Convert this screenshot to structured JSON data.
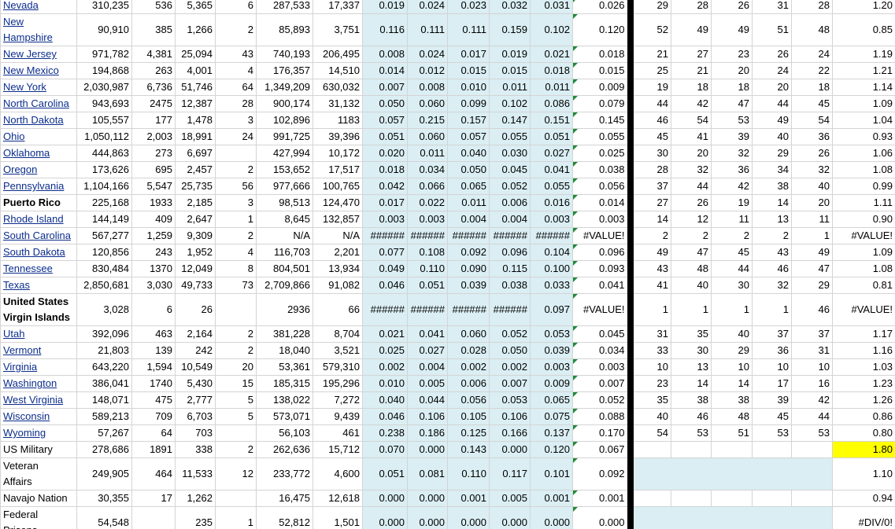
{
  "table": {
    "rows": [
      [
        "Nevada",
        "310,235",
        "536",
        "5,365",
        "6",
        "287,533",
        "17,337",
        "0.019",
        "0.024",
        "0.023",
        "0.032",
        "0.031",
        "0.026",
        "29",
        "28",
        "26",
        "31",
        "28",
        "1.20"
      ],
      [
        "New Hampshire",
        "90,910",
        "385",
        "1,266",
        "2",
        "85,893",
        "3,751",
        "0.116",
        "0.111",
        "0.111",
        "0.159",
        "0.102",
        "0.120",
        "52",
        "49",
        "49",
        "51",
        "48",
        "0.85"
      ],
      [
        "New Jersey",
        "971,782",
        "4,381",
        "25,094",
        "43",
        "740,193",
        "206,495",
        "0.008",
        "0.024",
        "0.017",
        "0.019",
        "0.021",
        "0.018",
        "21",
        "27",
        "23",
        "26",
        "24",
        "1.19"
      ],
      [
        "New Mexico",
        "194,868",
        "263",
        "4,001",
        "4",
        "176,357",
        "14,510",
        "0.014",
        "0.012",
        "0.015",
        "0.015",
        "0.018",
        "0.015",
        "25",
        "21",
        "20",
        "24",
        "22",
        "1.21"
      ],
      [
        "New York",
        "2,030,987",
        "6,736",
        "51,746",
        "64",
        "1,349,209",
        "630,032",
        "0.007",
        "0.008",
        "0.010",
        "0.011",
        "0.011",
        "0.009",
        "19",
        "18",
        "18",
        "20",
        "18",
        "1.14"
      ],
      [
        "North Carolina",
        "943,693",
        "2475",
        "12,387",
        "28",
        "900,174",
        "31,132",
        "0.050",
        "0.060",
        "0.099",
        "0.102",
        "0.086",
        "0.079",
        "44",
        "42",
        "47",
        "44",
        "45",
        "1.09"
      ],
      [
        "North Dakota",
        "105,557",
        "177",
        "1,478",
        "3",
        "102,896",
        "1183",
        "0.057",
        "0.215",
        "0.157",
        "0.147",
        "0.151",
        "0.145",
        "46",
        "54",
        "53",
        "49",
        "54",
        "1.04"
      ],
      [
        "Ohio",
        "1,050,112",
        "2,003",
        "18,991",
        "24",
        "991,725",
        "39,396",
        "0.051",
        "0.060",
        "0.057",
        "0.055",
        "0.051",
        "0.055",
        "45",
        "41",
        "39",
        "40",
        "36",
        "0.93"
      ],
      [
        "Oklahoma",
        "444,863",
        "273",
        "6,697",
        null,
        "427,994",
        "10,172",
        "0.020",
        "0.011",
        "0.040",
        "0.030",
        "0.027",
        "0.025",
        "30",
        "20",
        "32",
        "29",
        "26",
        "1.06"
      ],
      [
        "Oregon",
        "173,626",
        "695",
        "2,457",
        "2",
        "153,652",
        "17,517",
        "0.018",
        "0.034",
        "0.050",
        "0.045",
        "0.041",
        "0.038",
        "28",
        "32",
        "36",
        "34",
        "32",
        "1.08"
      ],
      [
        "Pennsylvania",
        "1,104,166",
        "5,547",
        "25,735",
        "56",
        "977,666",
        "100,765",
        "0.042",
        "0.066",
        "0.065",
        "0.052",
        "0.055",
        "0.056",
        "37",
        "44",
        "42",
        "38",
        "40",
        "0.99"
      ],
      [
        "Puerto Rico",
        "225,168",
        "1933",
        "2,185",
        "3",
        "98,513",
        "124,470",
        "0.017",
        "0.022",
        "0.011",
        "0.006",
        "0.016",
        "0.014",
        "27",
        "26",
        "19",
        "14",
        "20",
        "1.11"
      ],
      [
        "Rhode Island",
        "144,149",
        "409",
        "2,647",
        "1",
        "8,645",
        "132,857",
        "0.003",
        "0.003",
        "0.004",
        "0.004",
        "0.003",
        "0.003",
        "14",
        "12",
        "11",
        "13",
        "11",
        "0.90"
      ],
      [
        "South Carolina",
        "567,277",
        "1,259",
        "9,309",
        "2",
        "N/A",
        "N/A",
        "######",
        "######",
        "######",
        "######",
        "######",
        "#VALUE!",
        "2",
        "2",
        "2",
        "2",
        "1",
        "#VALUE!"
      ],
      [
        "South Dakota",
        "120,856",
        "243",
        "1,952",
        "4",
        "116,703",
        "2,201",
        "0.077",
        "0.108",
        "0.092",
        "0.096",
        "0.104",
        "0.096",
        "49",
        "47",
        "45",
        "43",
        "49",
        "1.09"
      ],
      [
        "Tennessee",
        "830,484",
        "1370",
        "12,049",
        "8",
        "804,501",
        "13,934",
        "0.049",
        "0.110",
        "0.090",
        "0.115",
        "0.100",
        "0.093",
        "43",
        "48",
        "44",
        "46",
        "47",
        "1.08"
      ],
      [
        "Texas",
        "2,850,681",
        "3,030",
        "49,733",
        "73",
        "2,709,866",
        "91,082",
        "0.046",
        "0.051",
        "0.039",
        "0.038",
        "0.033",
        "0.041",
        "41",
        "40",
        "30",
        "32",
        "29",
        "0.81"
      ],
      [
        "United States Virgin Islands",
        "3,028",
        "6",
        "26",
        null,
        "2936",
        "66",
        "######",
        "######",
        "######",
        "######",
        "0.097",
        "#VALUE!",
        "1",
        "1",
        "1",
        "1",
        "46",
        "#VALUE!"
      ],
      [
        "Utah",
        "392,096",
        "463",
        "2,164",
        "2",
        "381,228",
        "8,704",
        "0.021",
        "0.041",
        "0.060",
        "0.052",
        "0.053",
        "0.045",
        "31",
        "35",
        "40",
        "37",
        "37",
        "1.17"
      ],
      [
        "Vermont",
        "21,803",
        "139",
        "242",
        "2",
        "18,040",
        "3,521",
        "0.025",
        "0.027",
        "0.028",
        "0.050",
        "0.039",
        "0.034",
        "33",
        "30",
        "29",
        "36",
        "31",
        "1.16"
      ],
      [
        "Virginia",
        "643,220",
        "1,594",
        "10,549",
        "20",
        "53,361",
        "579,310",
        "0.002",
        "0.004",
        "0.002",
        "0.002",
        "0.003",
        "0.003",
        "10",
        "13",
        "10",
        "10",
        "10",
        "1.03"
      ],
      [
        "Washington",
        "386,041",
        "1740",
        "5,430",
        "15",
        "185,315",
        "195,296",
        "0.010",
        "0.005",
        "0.006",
        "0.007",
        "0.009",
        "0.007",
        "23",
        "14",
        "14",
        "17",
        "16",
        "1.23"
      ],
      [
        "West Virginia",
        "148,071",
        "475",
        "2,777",
        "5",
        "138,022",
        "7,272",
        "0.040",
        "0.044",
        "0.056",
        "0.053",
        "0.065",
        "0.052",
        "35",
        "38",
        "38",
        "39",
        "42",
        "1.26"
      ],
      [
        "Wisconsin",
        "589,213",
        "709",
        "6,703",
        "5",
        "573,071",
        "9,439",
        "0.046",
        "0.106",
        "0.105",
        "0.106",
        "0.075",
        "0.088",
        "40",
        "46",
        "48",
        "45",
        "44",
        "0.86"
      ],
      [
        "Wyoming",
        "57,267",
        "64",
        "703",
        null,
        "56,103",
        "461",
        "0.238",
        "0.186",
        "0.125",
        "0.166",
        "0.137",
        "0.170",
        "54",
        "53",
        "51",
        "53",
        "53",
        "0.80"
      ],
      [
        "US Military",
        "278,686",
        "1891",
        "338",
        "2",
        "262,636",
        "15,712",
        "0.070",
        "0.000",
        "0.143",
        "0.000",
        "0.120",
        "0.067",
        null,
        null,
        null,
        null,
        null,
        "1.80"
      ],
      [
        "Veteran Affairs",
        "249,905",
        "464",
        "11,533",
        "12",
        "233,772",
        "4,600",
        "0.051",
        "0.081",
        "0.110",
        "0.117",
        "0.101",
        "0.092",
        null,
        null,
        null,
        null,
        null,
        "1.10"
      ],
      [
        "Navajo Nation",
        "30,355",
        "17",
        "1,262",
        null,
        "16,475",
        "12,618",
        "0.000",
        "0.000",
        "0.001",
        "0.005",
        "0.001",
        "0.001",
        null,
        null,
        null,
        null,
        null,
        "0.94"
      ],
      [
        "Federal Prisons",
        "54,548",
        null,
        "235",
        "1",
        "52,812",
        "1,501",
        "0.000",
        "0.000",
        "0.000",
        "0.000",
        "0.000",
        "0.000",
        null,
        null,
        null,
        null,
        null,
        "#DIV/0!"
      ]
    ]
  }
}
